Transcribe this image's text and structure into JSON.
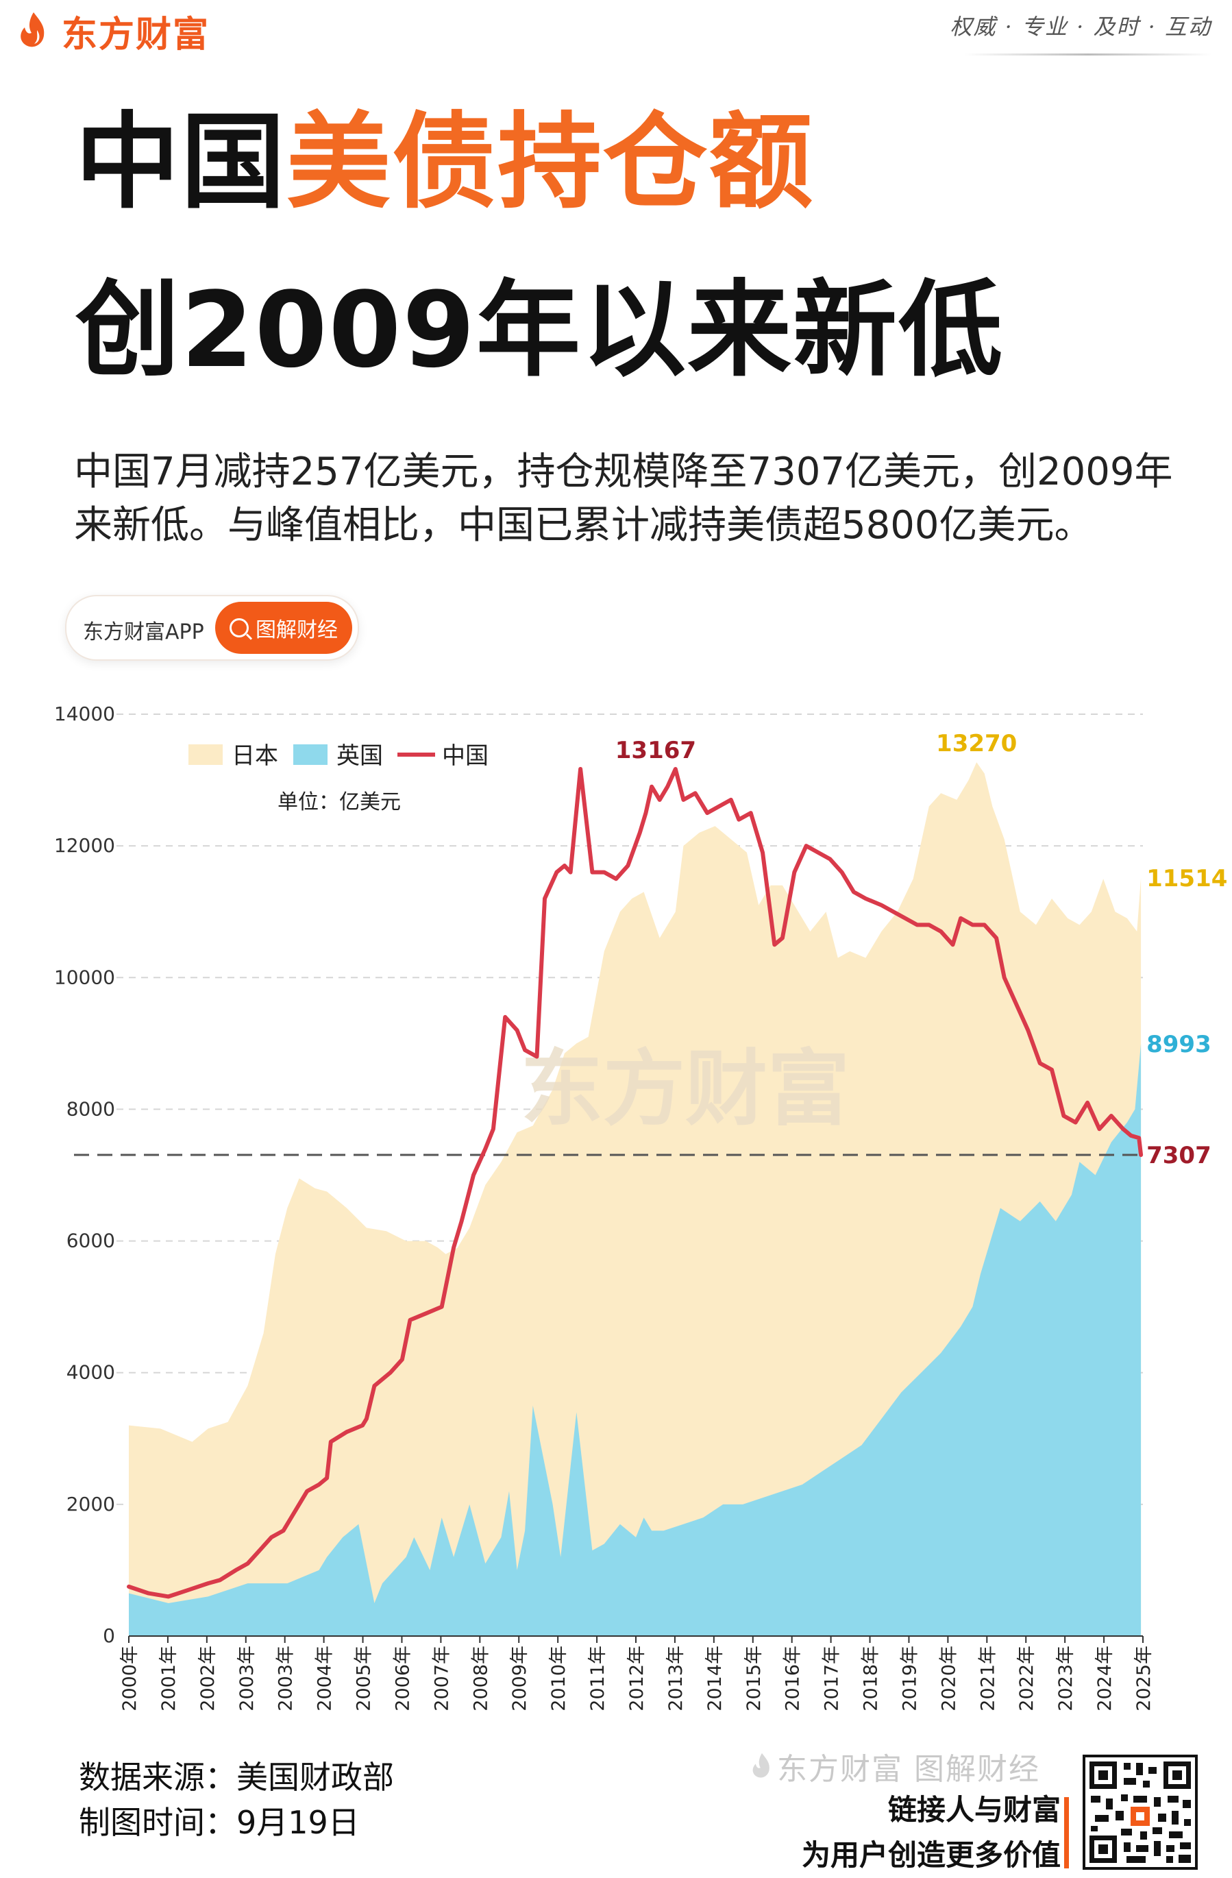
{
  "brand": {
    "name": "东方财富",
    "slogan": "权威 · 专业 · 及时 · 互动"
  },
  "title": {
    "part_dark": "中国",
    "part_orange": "美债持仓额",
    "line2": "创2009年以来新低"
  },
  "subtitle": "中国7月减持257亿美元，持仓规模降至7307亿美元，创2009年来新低。与峰值相比，中国已累计减持美债超5800亿美元。",
  "app": {
    "name": "东方财富APP",
    "tag": "图解财经"
  },
  "colors": {
    "orange": "#f26a22",
    "japan": "#fcebc6",
    "uk": "#8fd9ec",
    "china": "#d93a4a",
    "japan_label": "#e8b400",
    "uk_label": "#2fb0d6",
    "china_label": "#a01c2a"
  },
  "chart_data": {
    "type": "area+line",
    "unit": "单位：亿美元",
    "watermark": "东方财富",
    "ylim": [
      0,
      14000
    ],
    "yticks": [
      0,
      2000,
      4000,
      6000,
      8000,
      10000,
      12000,
      14000
    ],
    "xlim": [
      2000.0,
      2025.6
    ],
    "xticks": [
      "2000年",
      "2001年",
      "2002年",
      "2003年",
      "2003年",
      "2004年",
      "2005年",
      "2006年",
      "2007年",
      "2008年",
      "2009年",
      "2010年",
      "2011年",
      "2012年",
      "2013年",
      "2014年",
      "2015年",
      "2016年",
      "2017年",
      "2018年",
      "2019年",
      "2020年",
      "2021年",
      "2022年",
      "2023年",
      "2024年",
      "2025年"
    ],
    "reference_line": 7307,
    "series": [
      {
        "name": "日本",
        "kind": "area",
        "x": [
          2000.0,
          2000.8,
          2001.2,
          2001.6,
          2002.0,
          2002.5,
          2003.0,
          2003.4,
          2003.7,
          2004.0,
          2004.3,
          2004.7,
          2005.0,
          2005.5,
          2006.0,
          2006.5,
          2007.0,
          2007.5,
          2007.8,
          2008.0,
          2008.3,
          2008.6,
          2009.0,
          2009.4,
          2009.8,
          2010.2,
          2010.7,
          2011.0,
          2011.3,
          2011.6,
          2012.0,
          2012.4,
          2012.7,
          2013.0,
          2013.4,
          2013.8,
          2014.0,
          2014.4,
          2014.8,
          2015.2,
          2015.6,
          2015.9,
          2016.2,
          2016.5,
          2016.8,
          2017.2,
          2017.6,
          2017.9,
          2018.2,
          2018.6,
          2019.0,
          2019.4,
          2019.8,
          2020.2,
          2020.5,
          2020.9,
          2021.2,
          2021.4,
          2021.6,
          2021.8,
          2022.1,
          2022.5,
          2022.9,
          2023.3,
          2023.7,
          2024.0,
          2024.3,
          2024.6,
          2024.9,
          2025.2,
          2025.45,
          2025.55
        ],
        "values": [
          3200,
          3150,
          3050,
          2950,
          3150,
          3250,
          3800,
          4600,
          5800,
          6500,
          6950,
          6800,
          6750,
          6500,
          6200,
          6150,
          6000,
          6000,
          5900,
          5800,
          5900,
          6200,
          6850,
          7200,
          7650,
          7750,
          8300,
          8850,
          9000,
          9100,
          10400,
          11000,
          11200,
          11300,
          10600,
          11000,
          12000,
          12200,
          12300,
          12100,
          11900,
          11100,
          11400,
          11400,
          11100,
          10700,
          11000,
          10300,
          10400,
          10300,
          10700,
          11000,
          11500,
          12600,
          12800,
          12700,
          13000,
          13270,
          13100,
          12600,
          12100,
          11000,
          10800,
          11200,
          10900,
          10800,
          11000,
          11500,
          11000,
          10900,
          10700,
          11514
        ]
      },
      {
        "name": "英国",
        "kind": "area",
        "x": [
          2000.0,
          2001.0,
          2002.0,
          2003.0,
          2004.0,
          2004.8,
          2005.0,
          2005.4,
          2005.8,
          2006.2,
          2006.4,
          2007.0,
          2007.2,
          2007.6,
          2007.9,
          2008.2,
          2008.6,
          2009.0,
          2009.4,
          2009.6,
          2009.8,
          2010.0,
          2010.2,
          2010.7,
          2010.9,
          2011.3,
          2011.7,
          2012.0,
          2012.4,
          2012.8,
          2013.0,
          2013.2,
          2013.5,
          2014.0,
          2014.5,
          2015.0,
          2015.5,
          2016.0,
          2016.5,
          2017.0,
          2017.5,
          2018.0,
          2018.5,
          2019.0,
          2019.5,
          2020.0,
          2020.5,
          2021.0,
          2021.3,
          2021.5,
          2021.8,
          2022.0,
          2022.5,
          2023.0,
          2023.4,
          2023.8,
          2024.0,
          2024.4,
          2024.8,
          2025.2,
          2025.4,
          2025.55
        ],
        "values": [
          650,
          500,
          600,
          800,
          800,
          1000,
          1200,
          1500,
          1700,
          500,
          800,
          1200,
          1500,
          1000,
          1800,
          1200,
          2000,
          1100,
          1500,
          2200,
          1000,
          1600,
          3500,
          2000,
          1200,
          3400,
          1300,
          1400,
          1700,
          1500,
          1800,
          1600,
          1600,
          1700,
          1800,
          2000,
          2000,
          2100,
          2200,
          2300,
          2500,
          2700,
          2900,
          3300,
          3700,
          4000,
          4300,
          4700,
          5000,
          5500,
          6100,
          6500,
          6300,
          6600,
          6300,
          6700,
          7200,
          7000,
          7500,
          7800,
          8000,
          8993
        ]
      },
      {
        "name": "中国",
        "kind": "line",
        "x": [
          2000.0,
          2000.5,
          2001.0,
          2001.5,
          2002.0,
          2002.3,
          2002.7,
          2003.0,
          2003.3,
          2003.6,
          2003.9,
          2004.2,
          2004.5,
          2004.8,
          2005.0,
          2005.1,
          2005.5,
          2005.9,
          2006.0,
          2006.2,
          2006.6,
          2006.9,
          2007.1,
          2007.5,
          2007.9,
          2008.2,
          2008.4,
          2008.7,
          2009.0,
          2009.2,
          2009.5,
          2009.8,
          2010.0,
          2010.3,
          2010.5,
          2010.8,
          2011.0,
          2011.15,
          2011.4,
          2011.7,
          2012.0,
          2012.3,
          2012.6,
          2012.9,
          2013.05,
          2013.2,
          2013.4,
          2013.6,
          2013.8,
          2014.0,
          2014.3,
          2014.6,
          2014.9,
          2015.2,
          2015.4,
          2015.7,
          2016.0,
          2016.3,
          2016.5,
          2016.8,
          2017.1,
          2017.4,
          2017.7,
          2018.0,
          2018.3,
          2018.6,
          2019.0,
          2019.3,
          2019.6,
          2019.9,
          2020.2,
          2020.5,
          2020.8,
          2021.0,
          2021.3,
          2021.6,
          2021.9,
          2022.1,
          2022.4,
          2022.7,
          2023.0,
          2023.3,
          2023.6,
          2023.9,
          2024.2,
          2024.5,
          2024.8,
          2025.1,
          2025.3,
          2025.5,
          2025.55
        ],
        "values": [
          750,
          650,
          600,
          700,
          800,
          850,
          1000,
          1100,
          1300,
          1500,
          1600,
          1900,
          2200,
          2300,
          2400,
          2950,
          3100,
          3200,
          3300,
          3800,
          4000,
          4200,
          4800,
          4900,
          5000,
          5900,
          6300,
          7000,
          7400,
          7700,
          9400,
          9200,
          8900,
          8800,
          11200,
          11600,
          11700,
          11600,
          13167,
          11600,
          11600,
          11500,
          11700,
          12200,
          12500,
          12900,
          12700,
          12900,
          13167,
          12700,
          12800,
          12500,
          12600,
          12700,
          12400,
          12500,
          11900,
          10500,
          10600,
          11600,
          12000,
          11900,
          11800,
          11600,
          11300,
          11200,
          11100,
          11000,
          10900,
          10800,
          10800,
          10700,
          10500,
          10900,
          10800,
          10800,
          10600,
          10000,
          9600,
          9200,
          8700,
          8600,
          7900,
          7800,
          8100,
          7700,
          7900,
          7700,
          7600,
          7564,
          7307
        ]
      }
    ],
    "annotations": [
      {
        "text": "13167",
        "series": "中国",
        "x": 2013.3,
        "y": 13167
      },
      {
        "text": "13270",
        "series": "日本",
        "x": 2021.4,
        "y": 13270
      },
      {
        "text": "11514",
        "series": "日本",
        "x": 2025.55,
        "y": 11514
      },
      {
        "text": "8993",
        "series": "英国",
        "x": 2025.55,
        "y": 8993
      },
      {
        "text": "7307",
        "series": "中国",
        "x": 2025.55,
        "y": 7307
      }
    ]
  },
  "footer": {
    "source": "数据来源：美国财政部",
    "date": "制图时间：9月19日",
    "brand": "东方财富 图解财经",
    "slogan1": "链接人与财富",
    "slogan2": "为用户创造更多价值"
  }
}
